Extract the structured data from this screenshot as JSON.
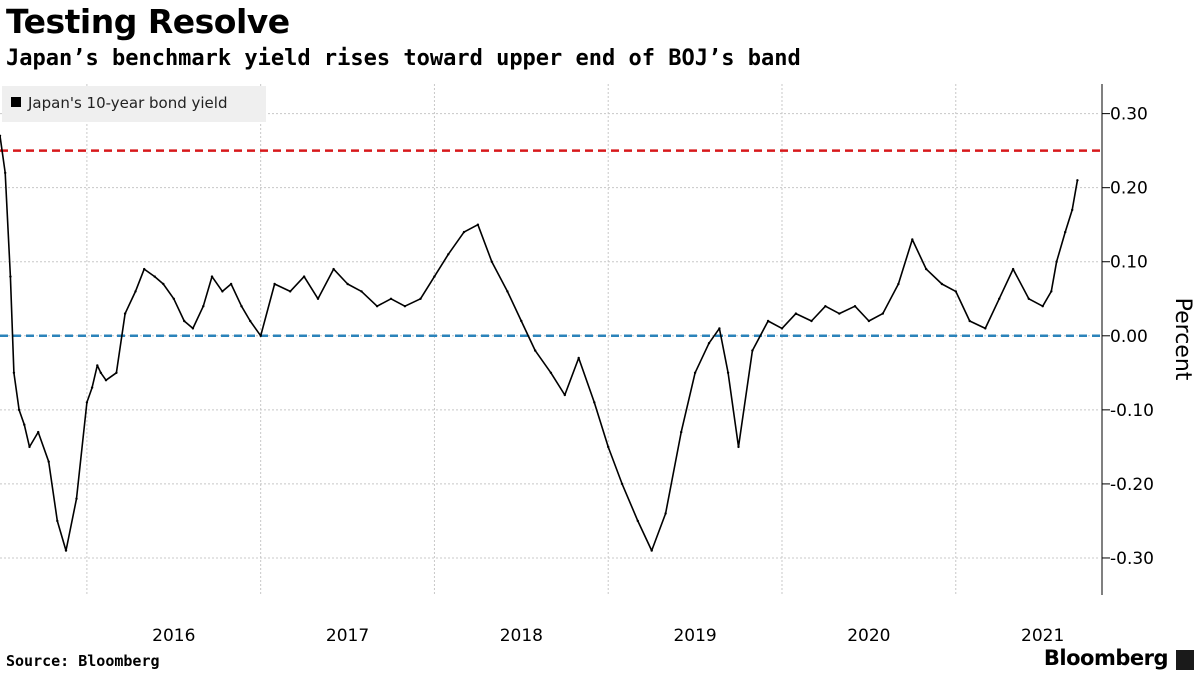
{
  "title": "Testing Resolve",
  "subtitle": "Japan’s benchmark yield rises toward upper end of BOJ’s band",
  "source": "Source: Bloomberg",
  "brand": "Bloomberg",
  "chart_data": {
    "type": "line",
    "title": "Testing Resolve",
    "subtitle": "Japan’s benchmark yield rises toward upper end of BOJ’s band",
    "xlabel": "",
    "ylabel": "Percent",
    "legend": {
      "position": "top-left",
      "entries": [
        "Japan's 10-year bond yield"
      ]
    },
    "grid": true,
    "xlim": [
      2015.5,
      2021.83
    ],
    "ylim": [
      -0.35,
      0.34
    ],
    "x_ticks": [
      {
        "label": "2016",
        "x": 2016.0
      },
      {
        "label": "2017",
        "x": 2017.0
      },
      {
        "label": "2018",
        "x": 2018.0
      },
      {
        "label": "2019",
        "x": 2019.0
      },
      {
        "label": "2020",
        "x": 2020.0
      },
      {
        "label": "2021",
        "x": 2021.0
      }
    ],
    "y_ticks": [
      {
        "label": "0.30",
        "value": 0.3
      },
      {
        "label": "0.20",
        "value": 0.2
      },
      {
        "label": "0.10",
        "value": 0.1
      },
      {
        "label": "0.00",
        "value": 0.0
      },
      {
        "label": "-0.10",
        "value": -0.1
      },
      {
        "label": "-0.20",
        "value": -0.2
      },
      {
        "label": "-0.30",
        "value": -0.3
      }
    ],
    "reference_lines": [
      {
        "y": 0.25,
        "color": "#d7191c",
        "style": "dashed"
      },
      {
        "y": 0.0,
        "color": "#2b83ba",
        "style": "dashed"
      }
    ],
    "series": [
      {
        "name": "Japan's 10-year bond yield",
        "color": "#000000",
        "x": [
          2015.5,
          2015.53,
          2015.56,
          2015.58,
          2015.61,
          2015.64,
          2015.67,
          2015.72,
          2015.78,
          2015.83,
          2015.88,
          2015.94,
          2016.0,
          2016.03,
          2016.06,
          2016.08,
          2016.11,
          2016.17,
          2016.22,
          2016.28,
          2016.33,
          2016.39,
          2016.44,
          2016.5,
          2016.56,
          2016.61,
          2016.67,
          2016.72,
          2016.78,
          2016.83,
          2016.89,
          2016.94,
          2017.0,
          2017.08,
          2017.17,
          2017.25,
          2017.33,
          2017.42,
          2017.5,
          2017.58,
          2017.67,
          2017.75,
          2017.83,
          2017.92,
          2018.0,
          2018.08,
          2018.17,
          2018.25,
          2018.33,
          2018.42,
          2018.5,
          2018.58,
          2018.67,
          2018.75,
          2018.83,
          2018.92,
          2019.0,
          2019.08,
          2019.17,
          2019.25,
          2019.33,
          2019.42,
          2019.5,
          2019.58,
          2019.64,
          2019.69,
          2019.75,
          2019.83,
          2019.92,
          2020.0,
          2020.08,
          2020.17,
          2020.25,
          2020.33,
          2020.42,
          2020.5,
          2020.58,
          2020.67,
          2020.75,
          2020.83,
          2020.92,
          2021.0,
          2021.08,
          2021.17,
          2021.25,
          2021.33,
          2021.42,
          2021.5,
          2021.55,
          2021.58,
          2021.63,
          2021.67,
          2021.7
        ],
        "y": [
          0.27,
          0.22,
          0.08,
          -0.05,
          -0.1,
          -0.12,
          -0.15,
          -0.13,
          -0.17,
          -0.25,
          -0.29,
          -0.22,
          -0.09,
          -0.07,
          -0.04,
          -0.05,
          -0.06,
          -0.05,
          0.03,
          0.06,
          0.09,
          0.08,
          0.07,
          0.05,
          0.02,
          0.01,
          0.04,
          0.08,
          0.06,
          0.07,
          0.04,
          0.02,
          0.0,
          0.07,
          0.06,
          0.08,
          0.05,
          0.09,
          0.07,
          0.06,
          0.04,
          0.05,
          0.04,
          0.05,
          0.08,
          0.11,
          0.14,
          0.15,
          0.1,
          0.06,
          0.02,
          -0.02,
          -0.05,
          -0.08,
          -0.03,
          -0.09,
          -0.15,
          -0.2,
          -0.25,
          -0.29,
          -0.24,
          -0.13,
          -0.05,
          -0.01,
          0.01,
          -0.05,
          -0.15,
          -0.02,
          0.02,
          0.01,
          0.03,
          0.02,
          0.04,
          0.03,
          0.04,
          0.02,
          0.03,
          0.07,
          0.13,
          0.09,
          0.07,
          0.06,
          0.02,
          0.01,
          0.05,
          0.09,
          0.05,
          0.04,
          0.06,
          0.1,
          0.14,
          0.17,
          0.21
        ]
      }
    ]
  }
}
